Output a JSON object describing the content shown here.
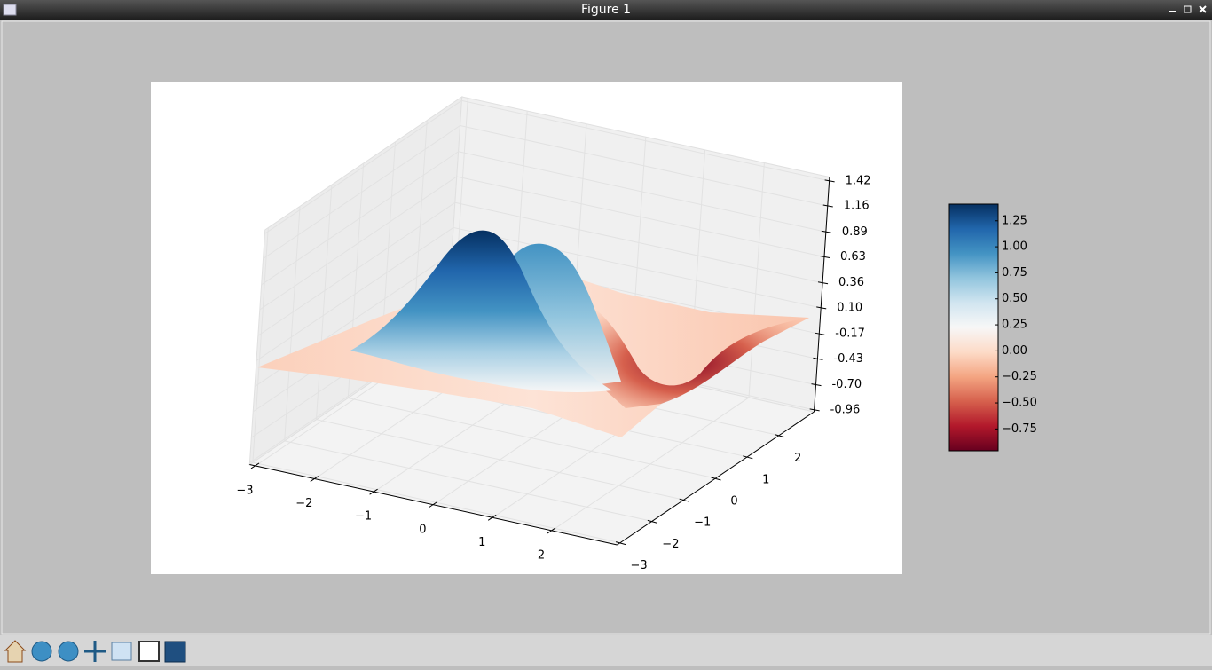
{
  "window": {
    "title": "Figure 1"
  },
  "chart_data": {
    "type": "surface3d",
    "xlim": [
      -3.1,
      3.1
    ],
    "ylim": [
      -3.1,
      3.1
    ],
    "zlim": [
      -0.98,
      1.46
    ],
    "xticks": [
      {
        "value": -3,
        "label": "−3"
      },
      {
        "value": -2,
        "label": "−2"
      },
      {
        "value": -1,
        "label": "−1"
      },
      0,
      1,
      2
    ],
    "yticks": [
      {
        "value": -3,
        "label": "−3"
      },
      {
        "value": -2,
        "label": "−2"
      },
      {
        "value": -1,
        "label": "−1"
      },
      0,
      1,
      2
    ],
    "zticks": [
      1.42,
      1.16,
      0.89,
      0.63,
      0.36,
      {
        "value": 0.1,
        "label": "0.10"
      },
      -0.17,
      -0.43,
      {
        "value": -0.7,
        "label": "-0.70"
      },
      -0.96
    ],
    "grid": true,
    "colorbar": {
      "lim": [
        -0.96,
        1.41
      ],
      "ticks": [
        1.25,
        {
          "value": 1,
          "label": "1.00"
        },
        0.75,
        {
          "value": 0.5,
          "label": "0.50"
        },
        0.25,
        {
          "value": 0,
          "label": "0.00"
        },
        {
          "value": -0.25,
          "label": "−0.25"
        },
        {
          "value": -0.5,
          "label": "−0.50"
        },
        {
          "value": -0.75,
          "label": "−0.75"
        }
      ],
      "colormap": [
        "#67001f",
        "#b2182b",
        "#d6604d",
        "#f4a582",
        "#fddbc7",
        "#f7f7f7",
        "#d1e5f0",
        "#92c5de",
        "#4393c3",
        "#2166ac",
        "#053061"
      ]
    }
  }
}
